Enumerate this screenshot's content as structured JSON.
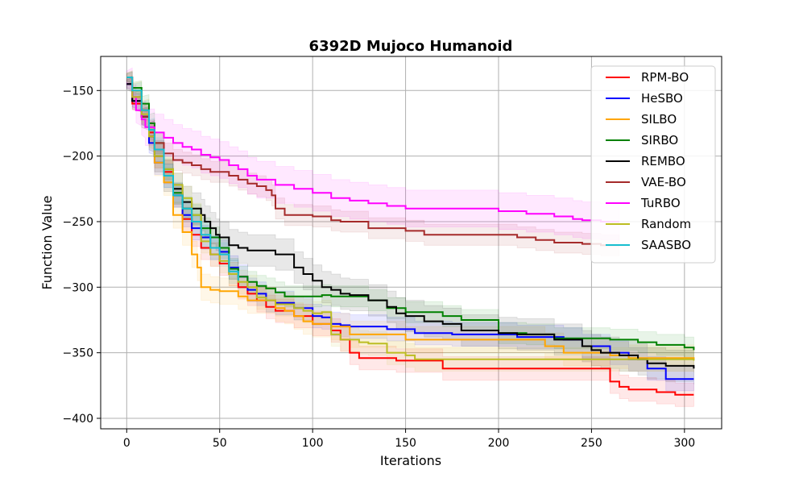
{
  "chart_data": {
    "type": "line",
    "title": "6392D Mujoco Humanoid",
    "xlabel": "Iterations",
    "ylabel": "Function Value",
    "xlim": [
      -14,
      320
    ],
    "ylim": [
      -408,
      -124
    ],
    "xticks": [
      0,
      50,
      100,
      150,
      200,
      250,
      300
    ],
    "yticks": [
      -400,
      -350,
      -300,
      -250,
      -200,
      -150
    ],
    "xtick_labels": [
      "0",
      "50",
      "100",
      "150",
      "200",
      "250",
      "300"
    ],
    "ytick_labels": [
      "−400",
      "−350",
      "−300",
      "−250",
      "−200",
      "−150"
    ],
    "grid": true,
    "legend_position": "top-right",
    "series": [
      {
        "name": "RPM-BO",
        "color": "#ff0000",
        "points": [
          [
            0,
            -145
          ],
          [
            3,
            -160
          ],
          [
            8,
            -170
          ],
          [
            12,
            -182
          ],
          [
            15,
            -200
          ],
          [
            20,
            -212
          ],
          [
            25,
            -230
          ],
          [
            30,
            -248
          ],
          [
            35,
            -260
          ],
          [
            40,
            -270
          ],
          [
            45,
            -275
          ],
          [
            50,
            -282
          ],
          [
            55,
            -290
          ],
          [
            60,
            -300
          ],
          [
            65,
            -305
          ],
          [
            70,
            -310
          ],
          [
            75,
            -315
          ],
          [
            80,
            -318
          ],
          [
            90,
            -322
          ],
          [
            100,
            -328
          ],
          [
            110,
            -333
          ],
          [
            115,
            -340
          ],
          [
            120,
            -350
          ],
          [
            125,
            -354
          ],
          [
            140,
            -354
          ],
          [
            145,
            -356
          ],
          [
            165,
            -356
          ],
          [
            170,
            -362
          ],
          [
            250,
            -362
          ],
          [
            260,
            -372
          ],
          [
            265,
            -376
          ],
          [
            270,
            -378
          ],
          [
            285,
            -380
          ],
          [
            295,
            -382
          ],
          [
            305,
            -382
          ]
        ],
        "band": 9
      },
      {
        "name": "HeSBO",
        "color": "#0000ff",
        "points": [
          [
            0,
            -145
          ],
          [
            3,
            -158
          ],
          [
            8,
            -170
          ],
          [
            12,
            -190
          ],
          [
            15,
            -205
          ],
          [
            20,
            -215
          ],
          [
            25,
            -230
          ],
          [
            30,
            -245
          ],
          [
            35,
            -255
          ],
          [
            40,
            -262
          ],
          [
            45,
            -270
          ],
          [
            50,
            -273
          ],
          [
            55,
            -285
          ],
          [
            60,
            -292
          ],
          [
            65,
            -302
          ],
          [
            70,
            -305
          ],
          [
            75,
            -310
          ],
          [
            80,
            -312
          ],
          [
            90,
            -316
          ],
          [
            100,
            -322
          ],
          [
            105,
            -323
          ],
          [
            110,
            -328
          ],
          [
            115,
            -329
          ],
          [
            120,
            -330
          ],
          [
            130,
            -330
          ],
          [
            140,
            -332
          ],
          [
            155,
            -335
          ],
          [
            175,
            -336
          ],
          [
            200,
            -336
          ],
          [
            210,
            -338
          ],
          [
            235,
            -340
          ],
          [
            245,
            -345
          ],
          [
            260,
            -350
          ],
          [
            270,
            -355
          ],
          [
            280,
            -362
          ],
          [
            290,
            -370
          ],
          [
            305,
            -370
          ]
        ],
        "band": 9
      },
      {
        "name": "SILBO",
        "color": "#ffa500",
        "points": [
          [
            0,
            -140
          ],
          [
            3,
            -150
          ],
          [
            8,
            -165
          ],
          [
            12,
            -185
          ],
          [
            15,
            -205
          ],
          [
            20,
            -220
          ],
          [
            25,
            -245
          ],
          [
            30,
            -258
          ],
          [
            35,
            -275
          ],
          [
            38,
            -285
          ],
          [
            40,
            -300
          ],
          [
            45,
            -302
          ],
          [
            50,
            -303
          ],
          [
            55,
            -303
          ],
          [
            60,
            -307
          ],
          [
            65,
            -310
          ],
          [
            70,
            -310
          ],
          [
            80,
            -316
          ],
          [
            85,
            -318
          ],
          [
            90,
            -322
          ],
          [
            95,
            -326
          ],
          [
            100,
            -328
          ],
          [
            110,
            -330
          ],
          [
            120,
            -336
          ],
          [
            140,
            -336
          ],
          [
            150,
            -340
          ],
          [
            200,
            -340
          ],
          [
            225,
            -345
          ],
          [
            230,
            -345
          ],
          [
            235,
            -350
          ],
          [
            260,
            -352
          ],
          [
            270,
            -354
          ],
          [
            305,
            -355
          ]
        ],
        "band": 10
      },
      {
        "name": "SIRBO",
        "color": "#008000",
        "points": [
          [
            0,
            -140
          ],
          [
            3,
            -148
          ],
          [
            8,
            -160
          ],
          [
            12,
            -175
          ],
          [
            15,
            -190
          ],
          [
            20,
            -210
          ],
          [
            25,
            -228
          ],
          [
            30,
            -240
          ],
          [
            35,
            -245
          ],
          [
            40,
            -255
          ],
          [
            45,
            -262
          ],
          [
            50,
            -270
          ],
          [
            55,
            -286
          ],
          [
            60,
            -292
          ],
          [
            65,
            -296
          ],
          [
            70,
            -299
          ],
          [
            75,
            -301
          ],
          [
            80,
            -304
          ],
          [
            85,
            -307
          ],
          [
            100,
            -307
          ],
          [
            105,
            -306
          ],
          [
            110,
            -307
          ],
          [
            130,
            -310
          ],
          [
            140,
            -316
          ],
          [
            150,
            -319
          ],
          [
            170,
            -322
          ],
          [
            180,
            -325
          ],
          [
            200,
            -335
          ],
          [
            215,
            -336
          ],
          [
            230,
            -339
          ],
          [
            260,
            -340
          ],
          [
            265,
            -340
          ],
          [
            275,
            -342
          ],
          [
            285,
            -344
          ],
          [
            300,
            -346
          ],
          [
            305,
            -348
          ]
        ],
        "band": 8
      },
      {
        "name": "REMBO",
        "color": "#000000",
        "points": [
          [
            0,
            -145
          ],
          [
            3,
            -158
          ],
          [
            8,
            -170
          ],
          [
            12,
            -185
          ],
          [
            15,
            -200
          ],
          [
            20,
            -215
          ],
          [
            25,
            -225
          ],
          [
            30,
            -235
          ],
          [
            35,
            -240
          ],
          [
            40,
            -245
          ],
          [
            42,
            -250
          ],
          [
            45,
            -255
          ],
          [
            48,
            -260
          ],
          [
            50,
            -262
          ],
          [
            55,
            -268
          ],
          [
            60,
            -270
          ],
          [
            65,
            -272
          ],
          [
            70,
            -272
          ],
          [
            80,
            -275
          ],
          [
            90,
            -285
          ],
          [
            95,
            -290
          ],
          [
            100,
            -295
          ],
          [
            105,
            -300
          ],
          [
            110,
            -302
          ],
          [
            115,
            -305
          ],
          [
            120,
            -306
          ],
          [
            130,
            -310
          ],
          [
            140,
            -315
          ],
          [
            145,
            -320
          ],
          [
            150,
            -322
          ],
          [
            160,
            -326
          ],
          [
            170,
            -328
          ],
          [
            180,
            -333
          ],
          [
            200,
            -335
          ],
          [
            210,
            -336
          ],
          [
            230,
            -340
          ],
          [
            245,
            -345
          ],
          [
            250,
            -348
          ],
          [
            255,
            -350
          ],
          [
            265,
            -352
          ],
          [
            275,
            -355
          ],
          [
            280,
            -358
          ],
          [
            290,
            -360
          ],
          [
            305,
            -362
          ]
        ],
        "band": 12
      },
      {
        "name": "VAE-BO",
        "color": "#a52a2a",
        "points": [
          [
            0,
            -140
          ],
          [
            3,
            -155
          ],
          [
            8,
            -170
          ],
          [
            12,
            -180
          ],
          [
            15,
            -190
          ],
          [
            20,
            -198
          ],
          [
            25,
            -203
          ],
          [
            30,
            -205
          ],
          [
            35,
            -207
          ],
          [
            40,
            -210
          ],
          [
            45,
            -212
          ],
          [
            55,
            -215
          ],
          [
            60,
            -218
          ],
          [
            65,
            -221
          ],
          [
            70,
            -223
          ],
          [
            75,
            -226
          ],
          [
            78,
            -230
          ],
          [
            80,
            -240
          ],
          [
            85,
            -245
          ],
          [
            100,
            -246
          ],
          [
            110,
            -249
          ],
          [
            115,
            -250
          ],
          [
            120,
            -250
          ],
          [
            130,
            -255
          ],
          [
            150,
            -257
          ],
          [
            160,
            -260
          ],
          [
            200,
            -260
          ],
          [
            210,
            -262
          ],
          [
            220,
            -264
          ],
          [
            230,
            -266
          ],
          [
            240,
            -266
          ],
          [
            245,
            -267
          ],
          [
            255,
            -268
          ],
          [
            265,
            -268
          ]
        ],
        "band": 8
      },
      {
        "name": "TuRBO",
        "color": "#ff00ff",
        "points": [
          [
            0,
            -140
          ],
          [
            3,
            -155
          ],
          [
            5,
            -165
          ],
          [
            8,
            -172
          ],
          [
            10,
            -178
          ],
          [
            15,
            -182
          ],
          [
            20,
            -186
          ],
          [
            25,
            -190
          ],
          [
            30,
            -193
          ],
          [
            35,
            -195
          ],
          [
            40,
            -199
          ],
          [
            45,
            -201
          ],
          [
            50,
            -203
          ],
          [
            55,
            -207
          ],
          [
            60,
            -210
          ],
          [
            65,
            -215
          ],
          [
            70,
            -218
          ],
          [
            80,
            -222
          ],
          [
            90,
            -225
          ],
          [
            100,
            -228
          ],
          [
            110,
            -232
          ],
          [
            120,
            -234
          ],
          [
            130,
            -236
          ],
          [
            140,
            -238
          ],
          [
            150,
            -240
          ],
          [
            170,
            -240
          ],
          [
            200,
            -242
          ],
          [
            210,
            -242
          ],
          [
            215,
            -244
          ],
          [
            220,
            -244
          ],
          [
            230,
            -246
          ],
          [
            240,
            -248
          ],
          [
            245,
            -249
          ],
          [
            255,
            -250
          ],
          [
            265,
            -250
          ]
        ],
        "band": 14
      },
      {
        "name": "Random",
        "color": "#bcbd22",
        "points": [
          [
            0,
            -140
          ],
          [
            3,
            -155
          ],
          [
            8,
            -168
          ],
          [
            12,
            -185
          ],
          [
            15,
            -200
          ],
          [
            20,
            -210
          ],
          [
            25,
            -222
          ],
          [
            30,
            -232
          ],
          [
            35,
            -245
          ],
          [
            40,
            -265
          ],
          [
            45,
            -275
          ],
          [
            50,
            -280
          ],
          [
            55,
            -290
          ],
          [
            60,
            -296
          ],
          [
            65,
            -300
          ],
          [
            70,
            -308
          ],
          [
            75,
            -310
          ],
          [
            80,
            -313
          ],
          [
            90,
            -316
          ],
          [
            95,
            -318
          ],
          [
            100,
            -320
          ],
          [
            105,
            -319
          ],
          [
            110,
            -336
          ],
          [
            115,
            -340
          ],
          [
            125,
            -342
          ],
          [
            130,
            -343
          ],
          [
            140,
            -350
          ],
          [
            150,
            -352
          ],
          [
            155,
            -355
          ],
          [
            200,
            -355
          ],
          [
            230,
            -355
          ],
          [
            235,
            -355
          ],
          [
            305,
            -356
          ]
        ],
        "band": 9
      },
      {
        "name": "SAASBO",
        "color": "#17becf",
        "points": [
          [
            0,
            -140
          ],
          [
            3,
            -150
          ],
          [
            8,
            -165
          ],
          [
            12,
            -180
          ],
          [
            15,
            -195
          ],
          [
            20,
            -215
          ],
          [
            25,
            -230
          ],
          [
            30,
            -240
          ],
          [
            35,
            -250
          ],
          [
            40,
            -260
          ],
          [
            45,
            -270
          ],
          [
            50,
            -275
          ],
          [
            55,
            -288
          ],
          [
            60,
            -295
          ]
        ],
        "band": 9
      }
    ]
  }
}
